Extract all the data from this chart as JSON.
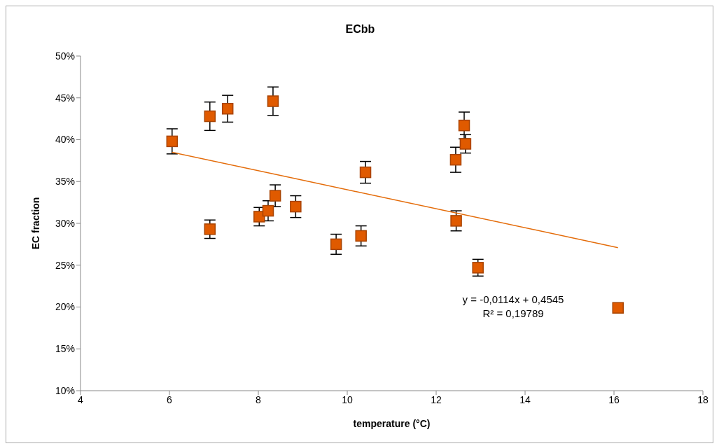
{
  "chart_data": {
    "type": "scatter",
    "title": "ECbb",
    "xlabel": "temperature (°C)",
    "ylabel": "EC fraction",
    "xlim": [
      4,
      18
    ],
    "xticks": [
      4,
      6,
      8,
      10,
      12,
      14,
      16,
      18
    ],
    "ylim": [
      10,
      50
    ],
    "yticks": [
      {
        "value": 10,
        "label": "10%"
      },
      {
        "value": 15,
        "label": "15%"
      },
      {
        "value": 20,
        "label": "20%"
      },
      {
        "value": 25,
        "label": "25%"
      },
      {
        "value": 30,
        "label": "30%"
      },
      {
        "value": 35,
        "label": "35%"
      },
      {
        "value": 40,
        "label": "40%"
      },
      {
        "value": 45,
        "label": "45%"
      },
      {
        "value": 50,
        "label": "50%"
      }
    ],
    "grid": false,
    "legend": false,
    "marker": "square",
    "annotations": [
      "y = -0,0114x + 0,4545",
      "R² = 0,19789"
    ],
    "series": [
      {
        "color": "#e05a00",
        "x": [
          6.06,
          6.91,
          7.31,
          8.33,
          6.91,
          8.02,
          8.22,
          8.38,
          8.84,
          9.75,
          10.31,
          10.41,
          12.44,
          12.63,
          12.66,
          12.45,
          12.94,
          16.09
        ],
        "values": [
          39.8,
          42.8,
          43.7,
          44.6,
          29.3,
          30.8,
          31.5,
          33.3,
          32.0,
          27.5,
          28.5,
          36.1,
          37.6,
          41.7,
          39.5,
          30.3,
          24.7,
          19.9
        ],
        "errors": [
          1.5,
          1.7,
          1.6,
          1.7,
          1.1,
          1.1,
          1.2,
          1.3,
          1.3,
          1.2,
          1.2,
          1.3,
          1.5,
          1.6,
          1.1,
          1.2,
          1.0,
          null
        ]
      },
      {
        "type": "line",
        "color": "#e46c0a",
        "x": [
          6.06,
          16.09
        ],
        "values": [
          38.5,
          27.1
        ],
        "marker": "none"
      }
    ]
  }
}
